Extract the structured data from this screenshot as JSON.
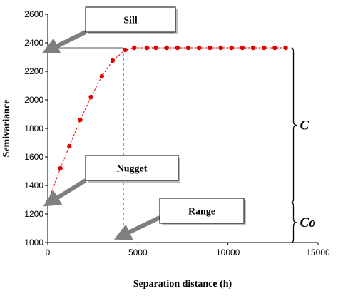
{
  "chart_data": {
    "type": "line",
    "xlabel": "Separation distance (h)",
    "ylabel": "Semivariance",
    "xlim": [
      0,
      15000
    ],
    "ylim": [
      1000,
      2600
    ],
    "x_ticks": [
      0,
      5000,
      10000,
      15000
    ],
    "y_ticks": [
      1000,
      1200,
      1400,
      1600,
      1800,
      2000,
      2200,
      2400,
      2600
    ],
    "grid": false,
    "series": [
      {
        "color": "#e00000",
        "line_style": "dashed",
        "marker": "circle",
        "x": [
          0,
          700,
          1200,
          1800,
          2400,
          3000,
          3600,
          4300,
          4800,
          5500,
          6000,
          6600,
          7200,
          7800,
          8400,
          9000,
          9600,
          10200,
          10800,
          11400,
          12000,
          12600,
          13200
        ],
        "y": [
          1280,
          1520,
          1675,
          1860,
          2020,
          2165,
          2275,
          2350,
          2365,
          2365,
          2365,
          2365,
          2365,
          2365,
          2365,
          2365,
          2365,
          2365,
          2365,
          2365,
          2365,
          2365,
          2365
        ]
      }
    ],
    "range_x": 4200,
    "sill_y": 2365,
    "nugget_y": 1280,
    "annotations": {
      "sill": "Sill",
      "nugget": "Nugget",
      "range": "Range",
      "c": "C",
      "co": "Co"
    }
  }
}
